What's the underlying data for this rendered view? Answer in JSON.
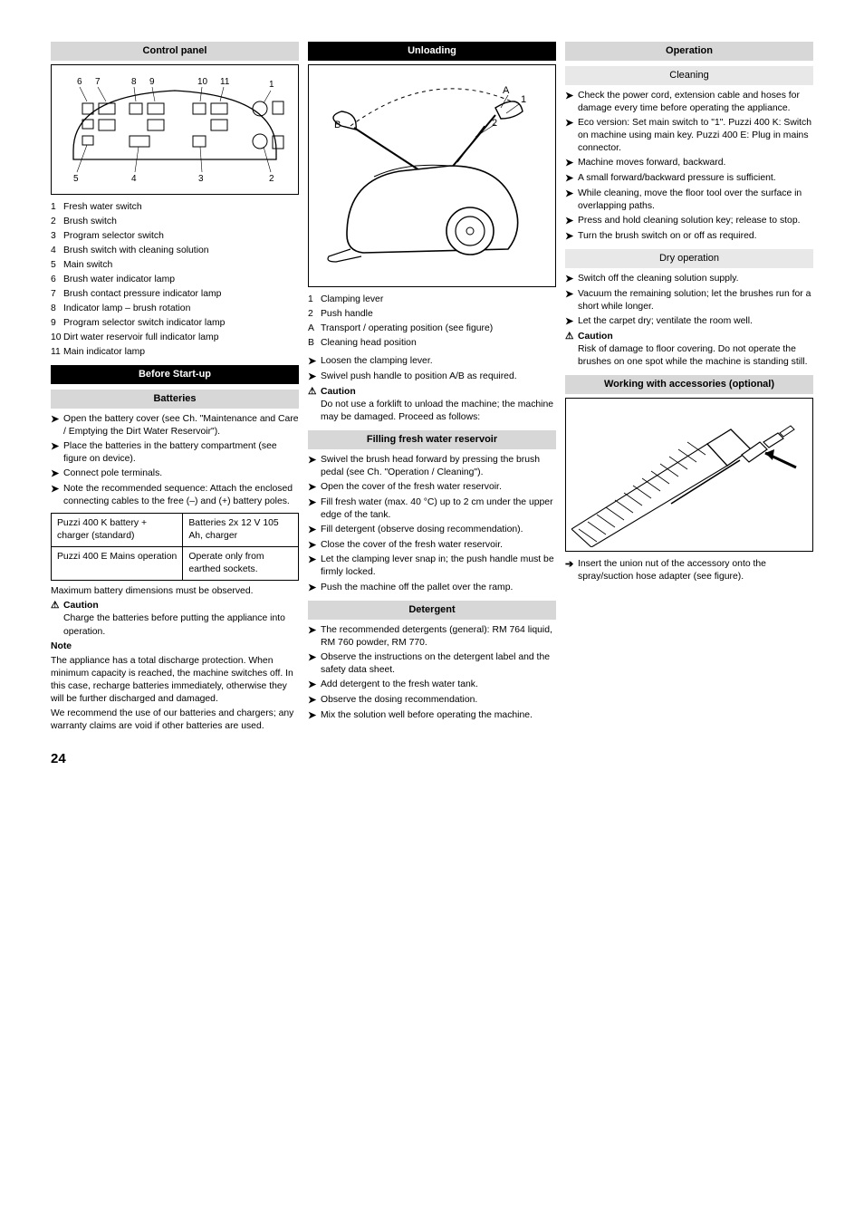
{
  "page_number": "24",
  "col1": {
    "hdr_panel": "Control panel",
    "panel_legend": [
      "Fresh water switch",
      "Brush switch",
      "Program selector switch",
      "Brush switch with cleaning solution",
      "Main switch",
      "Brush water indicator lamp",
      "Brush contact pressure indicator lamp",
      "Indicator lamp – brush rotation",
      "Program selector switch indicator lamp",
      "Dirt water reservoir full indicator lamp",
      "Main indicator lamp"
    ],
    "hdr_startup": "Before Start-up",
    "hdr_batt": "Batteries",
    "steps_batt": [
      "Open the battery cover (see Ch. \"Maintenance and Care / Emptying the Dirt Water Reservoir\").",
      "Place the batteries in the battery compartment (see figure on device).",
      "Connect pole terminals.",
      "Note the recommended sequence: Attach the enclosed connecting cables to the free (–) and (+) battery poles."
    ],
    "table": {
      "rows": [
        [
          "Puzzi 400 K battery + charger (standard)",
          "Batteries 2x 12 V 105 Ah, charger"
        ],
        [
          "Puzzi 400 E Mains operation",
          "Operate only from earthed sockets."
        ]
      ]
    },
    "para1": "Maximum battery dimensions must be observed.",
    "caution_hdr": "Caution",
    "caution_txt": "Charge the batteries before putting the appliance into operation.",
    "note_hdr": "Note",
    "note_txt": "The appliance has a total discharge protection. When minimum capacity is reached, the machine switches off. In this case, recharge batteries immediately, otherwise they will be further discharged and damaged.",
    "para2": "We recommend the use of our batteries and chargers; any warranty claims are void if other batteries are used."
  },
  "col2": {
    "hdr_unload": "Unloading",
    "fig_labels": {
      "A": "A",
      "B": "B",
      "1": "1",
      "2": "2"
    },
    "legend": [
      "Clamping lever",
      "Push handle"
    ],
    "positions": [
      "Transport / operating position (see figure)",
      "Cleaning head position"
    ],
    "steps_unload": [
      "Loosen the clamping lever.",
      "Swivel push handle to position A/B as required."
    ],
    "caution_hdr": "Caution",
    "caution_txt": "Do not use a forklift to unload the machine; the machine may be damaged. Proceed as follows:",
    "hdr_fresh": "Filling fresh water reservoir",
    "steps_fresh": [
      "Swivel the brush head forward by pressing the brush pedal (see Ch. \"Operation / Cleaning\").",
      "Open the cover of the fresh water reservoir.",
      "Fill fresh water (max. 40 °C) up to 2 cm under the upper edge of the tank.",
      "Fill detergent (observe dosing recommendation).",
      "Close the cover of the fresh water reservoir.",
      "Let the clamping lever snap in; the push handle must be firmly locked.",
      "Push the machine off the pallet over the ramp."
    ],
    "hdr_det": "Detergent",
    "steps_det": [
      "The recommended detergents (general): RM 764 liquid, RM 760 powder, RM 770.",
      "Observe the instructions on the detergent label and the safety data sheet.",
      "Add detergent to the fresh water tank.",
      "Observe the dosing recommendation.",
      "Mix the solution well before operating the machine."
    ]
  },
  "col3": {
    "hdr_op": "Operation",
    "hdr_clean": "Cleaning",
    "steps_clean": [
      "Check the power cord, extension cable and hoses for damage every time before operating the appliance.",
      "Eco version: Set main switch to \"1\". Puzzi 400 K: Switch on machine using main key. Puzzi 400 E: Plug in mains connector.",
      "Machine moves forward, backward.",
      "A small forward/backward pressure is sufficient.",
      "While cleaning, move the floor tool over the surface in overlapping paths.",
      "Press and hold cleaning solution key; release to stop.",
      "Turn the brush switch on or off as required."
    ],
    "hdr_dry": "Dry operation",
    "steps_dry": [
      "Switch off the cleaning solution supply.",
      "Vacuum the remaining solution; let the brushes run for a short while longer.",
      "Let the carpet dry; ventilate the room well."
    ],
    "caution_hdr": "Caution",
    "caution_txt": "Risk of damage to floor covering. Do not operate the brushes on one spot while the machine is standing still.",
    "hdr_acc": "Working with accessories (optional)",
    "acc_txt": "Insert the union nut of the accessory onto the spray/suction hose adapter (see figure)."
  }
}
